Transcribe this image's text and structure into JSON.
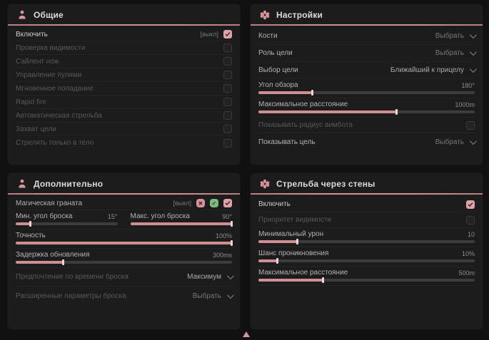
{
  "colors": {
    "accent_pink": "#cf9298",
    "panel_bg": "#1c1c1c",
    "page_bg": "#101010",
    "checkbox_checked": "#dda3a9",
    "slider_fill": "#cf8d94",
    "badge_green": "#7dbb7d"
  },
  "panels": {
    "general": {
      "title": "Общие",
      "enable_row": {
        "label": "Включить",
        "tag": "[выкл]",
        "checked": true
      },
      "toggles": [
        "Проверка видимости",
        "Сайлент нож",
        "Управление пулями",
        "Мгновенное попадание",
        "Rapid fire",
        "Автоматическая стрельба",
        "Захват цели",
        "Стрелять только в тело"
      ]
    },
    "settings": {
      "title": "Настройки",
      "dropdowns_top": [
        {
          "label": "Кости",
          "value": "Выбрать"
        },
        {
          "label": "Роль цели",
          "value": "Выбрать"
        },
        {
          "label": "Выбор цели",
          "value": "Ближайший к прицелу"
        }
      ],
      "sliders": [
        {
          "label": "Угол обзора",
          "value": "180°",
          "fill": 25
        },
        {
          "label": "Максимальное расстояние",
          "value": "1000m",
          "fill": 64
        }
      ],
      "toggle": {
        "label": "Показывать радиус аимбота",
        "checked": false
      },
      "dropdown_bottom": {
        "label": "Показывать цель",
        "value": "Выбрать"
      }
    },
    "additional": {
      "title": "Дополнительно",
      "grenade_row": {
        "label": "Магическая граната",
        "tag": "[выкл]",
        "checked": true
      },
      "slider_min": {
        "label": "Мин. угол броска",
        "value": "15°",
        "fill": 15
      },
      "slider_max": {
        "label": "Макс. угол броска",
        "value": "90°",
        "fill": 100
      },
      "slider_accuracy": {
        "label": "Точность",
        "value": "100%",
        "fill": 100
      },
      "slider_delay": {
        "label": "Задержка обновления",
        "value": "300ms",
        "fill": 22
      },
      "dropdowns": [
        {
          "label": "Предпочтение по времени броска",
          "value": "Максимум"
        },
        {
          "label": "Расширенные параметры броска",
          "value": "Выбрать"
        }
      ]
    },
    "wallbang": {
      "title": "Стрельба через стены",
      "enable_row": {
        "label": "Включить",
        "checked": true
      },
      "toggle": {
        "label": "Приоритет видимости",
        "checked": false
      },
      "sliders": [
        {
          "label": "Минимальный урон",
          "value": "10",
          "fill": 18
        },
        {
          "label": "Шанс проникновения",
          "value": "10%",
          "fill": 9
        },
        {
          "label": "Максимальное расстояние",
          "value": "500m",
          "fill": 30
        }
      ]
    }
  }
}
